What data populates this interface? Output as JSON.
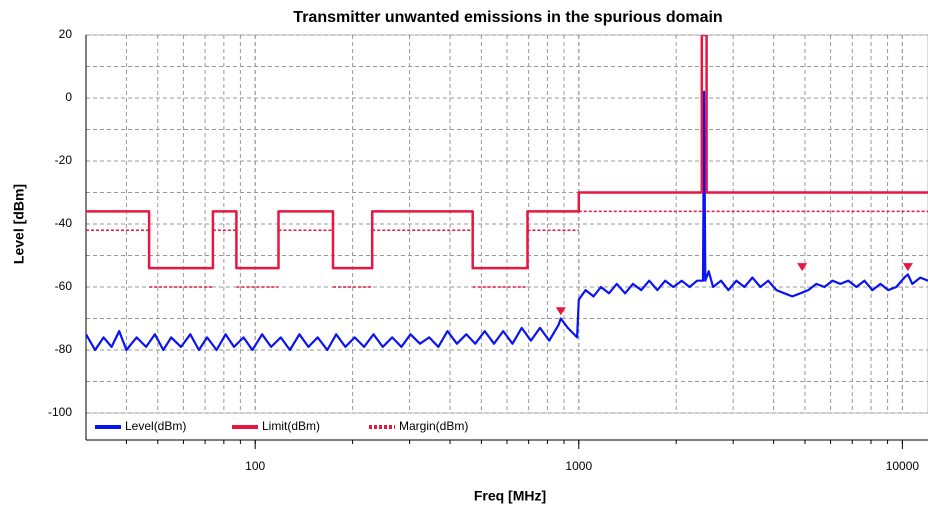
{
  "chart_data": {
    "type": "line",
    "title": "Transmitter unwanted emissions in the spurious domain",
    "x_label": "Freq [MHz]",
    "y_label": "Level [dBm]",
    "xscale": "log",
    "xlim": [
      30,
      12000
    ],
    "xticks": [
      100,
      1000,
      10000
    ],
    "ylim": [
      -100,
      20
    ],
    "yticks": [
      20,
      0,
      -20,
      -40,
      -60,
      -80,
      -100
    ],
    "grid": true,
    "legend": "bottom",
    "series": [
      {
        "name": "Level(dBm)",
        "color": "#0a14f0",
        "style": "solid",
        "x": [
          30,
          32,
          34,
          36,
          38,
          40,
          43,
          46,
          49,
          52,
          55,
          59,
          63,
          67,
          71,
          76,
          81,
          86,
          92,
          98,
          105,
          112,
          120,
          128,
          137,
          146,
          156,
          167,
          178,
          190,
          203,
          217,
          232,
          248,
          265,
          283,
          302,
          323,
          345,
          368,
          393,
          420,
          449,
          479,
          512,
          547,
          584,
          624,
          666,
          711,
          759,
          811,
          866,
          880,
          925,
          988,
          1000,
          1050,
          1110,
          1170,
          1240,
          1310,
          1390,
          1470,
          1560,
          1650,
          1750,
          1850,
          1960,
          2080,
          2200,
          2320,
          2420,
          2440,
          2460,
          2520,
          2600,
          2750,
          2900,
          3070,
          3250,
          3440,
          3640,
          3850,
          4080,
          4320,
          4570,
          4840,
          5120,
          5420,
          5740,
          6080,
          6430,
          6810,
          7210,
          7630,
          8080,
          8550,
          9050,
          9580,
          10140,
          10400,
          10730,
          11360,
          12000
        ],
        "values": [
          -75,
          -80,
          -76,
          -79,
          -74,
          -80,
          -76,
          -79,
          -75,
          -80,
          -76,
          -79,
          -75,
          -80,
          -76,
          -80,
          -75,
          -79,
          -76,
          -80,
          -75,
          -79,
          -76,
          -80,
          -75,
          -79,
          -76,
          -80,
          -75,
          -79,
          -76,
          -79,
          -75,
          -79,
          -76,
          -79,
          -75,
          -78,
          -76,
          -79,
          -74,
          -78,
          -75,
          -78,
          -74,
          -78,
          -74,
          -78,
          -73,
          -77,
          -73,
          -77,
          -72,
          -70,
          -73,
          -76,
          -64,
          -61,
          -63,
          -60,
          -62,
          -59,
          -62,
          -59,
          -61,
          -58,
          -61,
          -58,
          -60,
          -58,
          -60,
          -58,
          -58,
          2,
          -58,
          -55,
          -60,
          -58,
          -61,
          -58,
          -60,
          -57,
          -60,
          -58,
          -61,
          -62,
          -63,
          -62,
          -61,
          -59,
          -60,
          -58,
          -59,
          -58,
          -60,
          -58,
          -61,
          -59,
          -61,
          -60,
          -57,
          -56,
          -59,
          -57,
          -58
        ]
      },
      {
        "name": "Limit(dBm)",
        "color": "#e8173f",
        "style": "solid",
        "x": [
          30,
          47,
          47,
          74,
          74,
          87.5,
          87.5,
          118,
          118,
          174,
          174,
          230,
          230,
          470,
          470,
          694,
          694,
          1000,
          1000,
          2400,
          2400,
          2483.5,
          2483.5,
          12000
        ],
        "values": [
          -36,
          -36,
          -54,
          -54,
          -36,
          -36,
          -54,
          -54,
          -36,
          -36,
          -54,
          -54,
          -36,
          -36,
          -54,
          -54,
          -36,
          -36,
          -30,
          -30,
          20,
          20,
          -30,
          -30
        ]
      },
      {
        "name": "Margin(dBm)",
        "color": "#e8173f",
        "style": "dotted-pairs",
        "x": [
          30,
          47,
          47,
          74,
          74,
          87.5,
          87.5,
          118,
          118,
          174,
          174,
          230,
          230,
          470,
          470,
          694,
          694,
          1000,
          1000,
          2400,
          2483.5,
          12000
        ],
        "values": [
          -42,
          -42,
          -60,
          -60,
          -42,
          -42,
          -60,
          -60,
          -42,
          -42,
          -60,
          -60,
          -42,
          -42,
          -60,
          -60,
          -42,
          -42,
          -36,
          -36,
          -36,
          -36
        ]
      }
    ],
    "markers": {
      "color": "#e8173f",
      "x": [
        880,
        4900,
        10400
      ],
      "values": [
        -68,
        -54,
        -54
      ]
    }
  }
}
